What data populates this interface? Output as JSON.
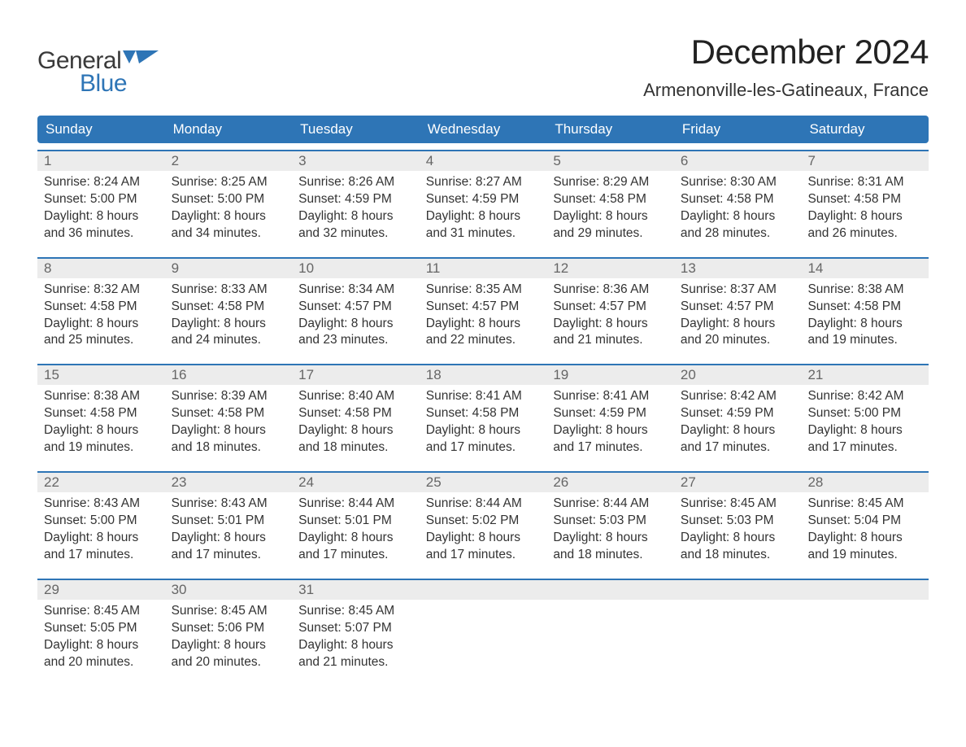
{
  "brand": {
    "word1": "General",
    "word2": "Blue",
    "word2_color": "#2e75b6"
  },
  "title": "December 2024",
  "location": "Armenonville-les-Gatineaux, France",
  "colors": {
    "header_bg": "#2e75b6",
    "week_border": "#2e75b6",
    "daynum_bg": "#ececec",
    "text": "#333333",
    "background": "#ffffff"
  },
  "fonts": {
    "title_size_pt": 32,
    "location_size_pt": 17,
    "weekday_size_pt": 13,
    "body_size_pt": 12
  },
  "weekdays": [
    "Sunday",
    "Monday",
    "Tuesday",
    "Wednesday",
    "Thursday",
    "Friday",
    "Saturday"
  ],
  "weeks": [
    [
      {
        "n": "1",
        "sunrise": "8:24 AM",
        "sunset": "5:00 PM",
        "daylight": "8 hours and 36 minutes."
      },
      {
        "n": "2",
        "sunrise": "8:25 AM",
        "sunset": "5:00 PM",
        "daylight": "8 hours and 34 minutes."
      },
      {
        "n": "3",
        "sunrise": "8:26 AM",
        "sunset": "4:59 PM",
        "daylight": "8 hours and 32 minutes."
      },
      {
        "n": "4",
        "sunrise": "8:27 AM",
        "sunset": "4:59 PM",
        "daylight": "8 hours and 31 minutes."
      },
      {
        "n": "5",
        "sunrise": "8:29 AM",
        "sunset": "4:58 PM",
        "daylight": "8 hours and 29 minutes."
      },
      {
        "n": "6",
        "sunrise": "8:30 AM",
        "sunset": "4:58 PM",
        "daylight": "8 hours and 28 minutes."
      },
      {
        "n": "7",
        "sunrise": "8:31 AM",
        "sunset": "4:58 PM",
        "daylight": "8 hours and 26 minutes."
      }
    ],
    [
      {
        "n": "8",
        "sunrise": "8:32 AM",
        "sunset": "4:58 PM",
        "daylight": "8 hours and 25 minutes."
      },
      {
        "n": "9",
        "sunrise": "8:33 AM",
        "sunset": "4:58 PM",
        "daylight": "8 hours and 24 minutes."
      },
      {
        "n": "10",
        "sunrise": "8:34 AM",
        "sunset": "4:57 PM",
        "daylight": "8 hours and 23 minutes."
      },
      {
        "n": "11",
        "sunrise": "8:35 AM",
        "sunset": "4:57 PM",
        "daylight": "8 hours and 22 minutes."
      },
      {
        "n": "12",
        "sunrise": "8:36 AM",
        "sunset": "4:57 PM",
        "daylight": "8 hours and 21 minutes."
      },
      {
        "n": "13",
        "sunrise": "8:37 AM",
        "sunset": "4:57 PM",
        "daylight": "8 hours and 20 minutes."
      },
      {
        "n": "14",
        "sunrise": "8:38 AM",
        "sunset": "4:58 PM",
        "daylight": "8 hours and 19 minutes."
      }
    ],
    [
      {
        "n": "15",
        "sunrise": "8:38 AM",
        "sunset": "4:58 PM",
        "daylight": "8 hours and 19 minutes."
      },
      {
        "n": "16",
        "sunrise": "8:39 AM",
        "sunset": "4:58 PM",
        "daylight": "8 hours and 18 minutes."
      },
      {
        "n": "17",
        "sunrise": "8:40 AM",
        "sunset": "4:58 PM",
        "daylight": "8 hours and 18 minutes."
      },
      {
        "n": "18",
        "sunrise": "8:41 AM",
        "sunset": "4:58 PM",
        "daylight": "8 hours and 17 minutes."
      },
      {
        "n": "19",
        "sunrise": "8:41 AM",
        "sunset": "4:59 PM",
        "daylight": "8 hours and 17 minutes."
      },
      {
        "n": "20",
        "sunrise": "8:42 AM",
        "sunset": "4:59 PM",
        "daylight": "8 hours and 17 minutes."
      },
      {
        "n": "21",
        "sunrise": "8:42 AM",
        "sunset": "5:00 PM",
        "daylight": "8 hours and 17 minutes."
      }
    ],
    [
      {
        "n": "22",
        "sunrise": "8:43 AM",
        "sunset": "5:00 PM",
        "daylight": "8 hours and 17 minutes."
      },
      {
        "n": "23",
        "sunrise": "8:43 AM",
        "sunset": "5:01 PM",
        "daylight": "8 hours and 17 minutes."
      },
      {
        "n": "24",
        "sunrise": "8:44 AM",
        "sunset": "5:01 PM",
        "daylight": "8 hours and 17 minutes."
      },
      {
        "n": "25",
        "sunrise": "8:44 AM",
        "sunset": "5:02 PM",
        "daylight": "8 hours and 17 minutes."
      },
      {
        "n": "26",
        "sunrise": "8:44 AM",
        "sunset": "5:03 PM",
        "daylight": "8 hours and 18 minutes."
      },
      {
        "n": "27",
        "sunrise": "8:45 AM",
        "sunset": "5:03 PM",
        "daylight": "8 hours and 18 minutes."
      },
      {
        "n": "28",
        "sunrise": "8:45 AM",
        "sunset": "5:04 PM",
        "daylight": "8 hours and 19 minutes."
      }
    ],
    [
      {
        "n": "29",
        "sunrise": "8:45 AM",
        "sunset": "5:05 PM",
        "daylight": "8 hours and 20 minutes."
      },
      {
        "n": "30",
        "sunrise": "8:45 AM",
        "sunset": "5:06 PM",
        "daylight": "8 hours and 20 minutes."
      },
      {
        "n": "31",
        "sunrise": "8:45 AM",
        "sunset": "5:07 PM",
        "daylight": "8 hours and 21 minutes."
      },
      null,
      null,
      null,
      null
    ]
  ],
  "labels": {
    "sunrise": "Sunrise:",
    "sunset": "Sunset:",
    "daylight": "Daylight:"
  }
}
